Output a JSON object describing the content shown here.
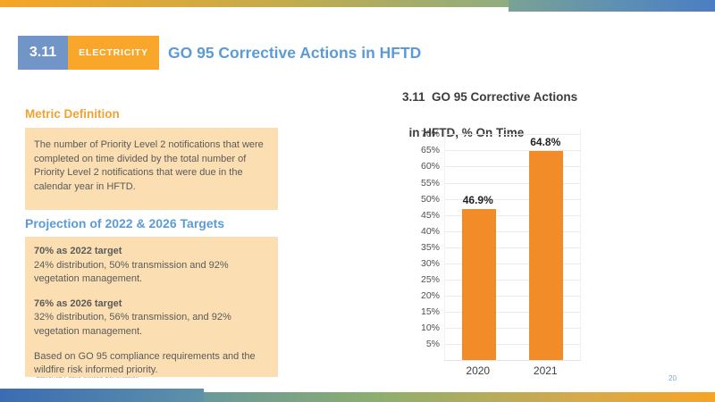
{
  "slide": {
    "header": {
      "number": "3.11",
      "category": "ELECTRICITY",
      "title": "GO 95 Corrective Actions in HFTD"
    },
    "metric_definition": {
      "heading": "Metric Definition",
      "body": "The number of Priority Level 2 notifications that were completed on time divided by the total number of Priority Level 2 notifications that were due in the calendar year in HFTD."
    },
    "projection": {
      "heading": "Projection of 2022 & 2026 Targets",
      "entries": [
        {
          "title": "70% as 2022 target",
          "body": "24% distribution, 50% transmission and 92% vegetation management."
        },
        {
          "title": "76% as 2026 target",
          "body": "32% distribution, 56% transmission, and 92% vegetation management."
        }
      ],
      "note": "Based on GO 95 compliance requirements and the wildfire risk informed priority."
    },
    "footer": {
      "organization": "California Public Utilities Commission",
      "page_number": "20"
    }
  },
  "chart_data": {
    "type": "bar",
    "title": "3.11  GO 95 Corrective Actions in HFTD, % On Time",
    "title_lines": [
      "3.11  GO 95 Corrective Actions",
      "in HFTD, % On Time"
    ],
    "categories": [
      "2020",
      "2021"
    ],
    "values": [
      46.9,
      64.8
    ],
    "value_labels": [
      "46.9%",
      "64.8%"
    ],
    "ylim": [
      0,
      71.5
    ],
    "yticks": [
      5,
      10,
      15,
      20,
      25,
      30,
      35,
      40,
      45,
      50,
      55,
      60,
      65,
      70
    ],
    "ytick_suffix": "%",
    "grid": true,
    "legend": false,
    "bar_color": "#F28C28"
  },
  "colors": {
    "accent_blue": "#7195C6",
    "accent_orange": "#F9A72B",
    "title_blue": "#5B9BD5",
    "heading_orange": "#F2A233",
    "box_background": "#FBDFB2",
    "body_text": "#5A5A5A",
    "bar_orange": "#F28C28",
    "footer_blue": "#85A9D6"
  }
}
